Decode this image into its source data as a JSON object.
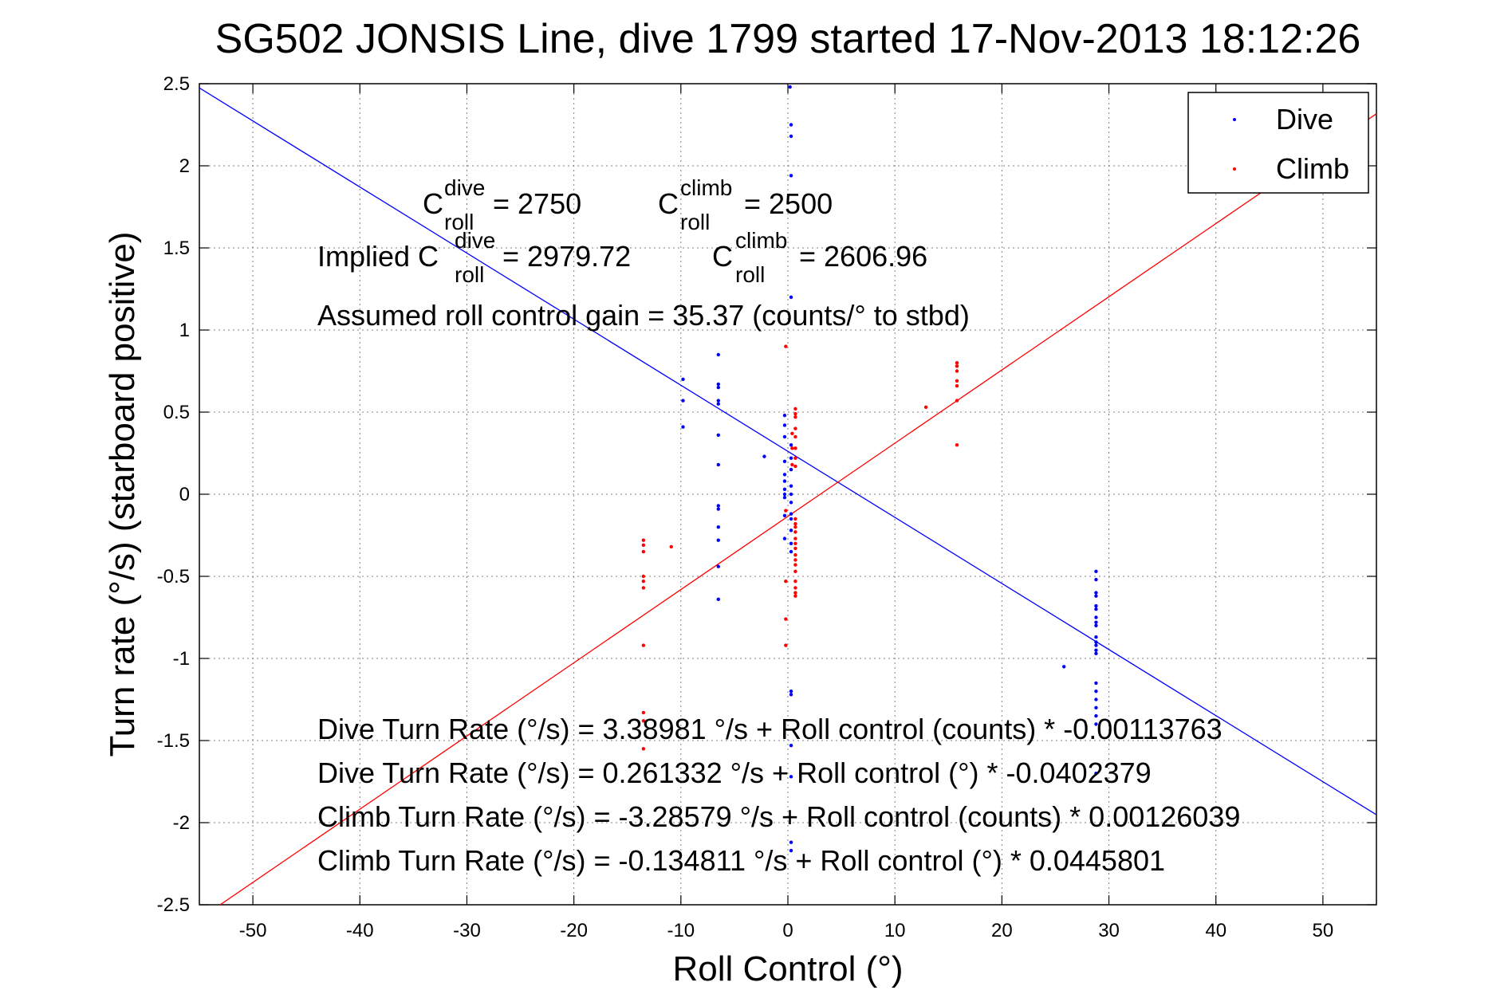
{
  "chart_data": {
    "type": "scatter",
    "title": "SG502 JONSIS Line, dive 1799 started 17-Nov-2013 18:12:26",
    "xlabel": "Roll Control (°)",
    "ylabel": "Turn rate (°/s) (starboard positive)",
    "xlim": [
      -55,
      55
    ],
    "ylim": [
      -2.5,
      2.5
    ],
    "x_ticks": [
      -50,
      -40,
      -30,
      -20,
      -10,
      0,
      10,
      20,
      30,
      40,
      50
    ],
    "x_tick_labels": [
      "-50",
      "-40",
      "-30",
      "-20",
      "-10",
      "0",
      "10",
      "20",
      "30",
      "40",
      "50"
    ],
    "y_ticks": [
      2.5,
      2,
      1.5,
      1,
      0.5,
      0,
      -0.5,
      -1,
      -1.5,
      -2,
      -2.5
    ],
    "y_tick_labels": [
      "2.5",
      "2",
      "1.5",
      "1",
      "0.5",
      "0",
      "-0.5",
      "-1",
      "-1.5",
      "-2",
      "-2.5"
    ],
    "grid": true,
    "legend_position": "top-right",
    "series": [
      {
        "name": "Dive",
        "color": "#0000ff",
        "points": [
          [
            0.2,
            2.48
          ],
          [
            0.3,
            2.25
          ],
          [
            0.3,
            2.18
          ],
          [
            0.3,
            1.94
          ],
          [
            0.3,
            1.2
          ],
          [
            -9.8,
            0.7
          ],
          [
            -9.8,
            0.57
          ],
          [
            -9.8,
            0.41
          ],
          [
            -6.5,
            0.85
          ],
          [
            -6.5,
            0.67
          ],
          [
            -6.5,
            0.65
          ],
          [
            -6.5,
            0.57
          ],
          [
            -6.5,
            0.55
          ],
          [
            -6.5,
            0.36
          ],
          [
            -6.5,
            0.18
          ],
          [
            -6.5,
            -0.07
          ],
          [
            -6.5,
            -0.09
          ],
          [
            -6.5,
            -0.2
          ],
          [
            -6.5,
            -0.28
          ],
          [
            -6.5,
            -0.44
          ],
          [
            -6.5,
            -0.64
          ],
          [
            -2.2,
            0.23
          ],
          [
            -0.3,
            0.48
          ],
          [
            -0.3,
            0.42
          ],
          [
            -0.3,
            0.35
          ],
          [
            -0.3,
            0.2
          ],
          [
            -0.3,
            0.12
          ],
          [
            -0.3,
            0.08
          ],
          [
            -0.3,
            0.03
          ],
          [
            -0.3,
            0.0
          ],
          [
            -0.3,
            -0.02
          ],
          [
            -0.3,
            -0.13
          ],
          [
            -0.3,
            -0.27
          ],
          [
            0.3,
            0.3
          ],
          [
            0.3,
            0.22
          ],
          [
            0.3,
            0.15
          ],
          [
            0.3,
            0.05
          ],
          [
            0.3,
            0.0
          ],
          [
            0.3,
            -0.05
          ],
          [
            0.3,
            -0.12
          ],
          [
            0.3,
            -0.15
          ],
          [
            0.3,
            -0.22
          ],
          [
            0.3,
            -0.3
          ],
          [
            0.3,
            -0.35
          ],
          [
            0.3,
            -1.2
          ],
          [
            0.3,
            -1.22
          ],
          [
            0.3,
            -1.53
          ],
          [
            0.3,
            -1.72
          ],
          [
            0.3,
            -2.12
          ],
          [
            0.3,
            -2.17
          ],
          [
            25.8,
            -1.05
          ],
          [
            28.8,
            -0.47
          ],
          [
            28.8,
            -0.52
          ],
          [
            28.8,
            -0.6
          ],
          [
            28.8,
            -0.62
          ],
          [
            28.8,
            -0.68
          ],
          [
            28.8,
            -0.7
          ],
          [
            28.8,
            -0.75
          ],
          [
            28.8,
            -0.78
          ],
          [
            28.8,
            -0.8
          ],
          [
            28.8,
            -0.87
          ],
          [
            28.8,
            -0.9
          ],
          [
            28.8,
            -0.92
          ],
          [
            28.8,
            -0.95
          ],
          [
            28.8,
            -0.97
          ],
          [
            28.8,
            -1.15
          ],
          [
            28.8,
            -1.2
          ],
          [
            28.8,
            -1.25
          ],
          [
            28.8,
            -1.3
          ],
          [
            28.8,
            -1.35
          ],
          [
            28.8,
            -1.4
          ],
          [
            28.8,
            -1.7
          ]
        ]
      },
      {
        "name": "Climb",
        "color": "#ff0000",
        "points": [
          [
            -13.5,
            -0.28
          ],
          [
            -13.5,
            -0.31
          ],
          [
            -13.5,
            -0.35
          ],
          [
            -13.5,
            -0.5
          ],
          [
            -13.5,
            -0.53
          ],
          [
            -13.5,
            -0.57
          ],
          [
            -13.5,
            -0.92
          ],
          [
            -13.5,
            -1.33
          ],
          [
            -13.5,
            -1.38
          ],
          [
            -13.5,
            -1.55
          ],
          [
            -10.9,
            -0.32
          ],
          [
            -0.2,
            0.9
          ],
          [
            -0.2,
            -0.1
          ],
          [
            -0.2,
            -0.53
          ],
          [
            -0.2,
            -0.76
          ],
          [
            -0.2,
            -0.92
          ],
          [
            0.4,
            0.37
          ],
          [
            0.4,
            0.28
          ],
          [
            0.4,
            0.18
          ],
          [
            0.7,
            0.52
          ],
          [
            0.7,
            0.49
          ],
          [
            0.7,
            0.47
          ],
          [
            0.7,
            0.4
          ],
          [
            0.7,
            0.35
          ],
          [
            0.7,
            0.28
          ],
          [
            0.7,
            0.22
          ],
          [
            0.7,
            0.17
          ],
          [
            0.7,
            -0.15
          ],
          [
            0.7,
            -0.18
          ],
          [
            0.7,
            -0.2
          ],
          [
            0.7,
            -0.23
          ],
          [
            0.7,
            -0.27
          ],
          [
            0.7,
            -0.3
          ],
          [
            0.7,
            -0.33
          ],
          [
            0.7,
            -0.37
          ],
          [
            0.7,
            -0.4
          ],
          [
            0.7,
            -0.43
          ],
          [
            0.7,
            -0.47
          ],
          [
            0.7,
            -0.53
          ],
          [
            0.7,
            -0.57
          ],
          [
            0.7,
            -0.6
          ],
          [
            0.7,
            -0.62
          ],
          [
            12.9,
            0.53
          ],
          [
            15.8,
            0.8
          ],
          [
            15.8,
            0.78
          ],
          [
            15.8,
            0.75
          ],
          [
            15.8,
            0.69
          ],
          [
            15.8,
            0.66
          ],
          [
            15.8,
            0.57
          ],
          [
            15.8,
            0.3
          ]
        ]
      }
    ],
    "fit_lines": [
      {
        "series": "Dive",
        "intercept": 0.261332,
        "slope": -0.0402379,
        "color": "#0000ff"
      },
      {
        "series": "Climb",
        "intercept": -0.134811,
        "slope": 0.0445801,
        "color": "#ff0000"
      }
    ],
    "annotations": {
      "c_roll_dive_label": "C",
      "c_roll_dive_sup": "dive",
      "c_roll_dive_sub": "roll",
      "c_roll_dive_value": " = 2750",
      "c_roll_climb_label": "C",
      "c_roll_climb_sup": "climb",
      "c_roll_climb_sub": "roll",
      "c_roll_climb_value": " = 2500",
      "implied_prefix": "Implied C",
      "implied_dive_sup": "dive",
      "implied_dive_sub": "roll",
      "implied_dive_value": " = 2979.72",
      "implied_climb_label": "C",
      "implied_climb_sup": "climb",
      "implied_climb_sub": "roll",
      "implied_climb_value": " = 2606.96",
      "gain": "Assumed roll control gain = 35.37 (counts/° to stbd)",
      "eq1": "Dive Turn Rate (°/s) = 3.38981 °/s + Roll control (counts) * -0.00113763",
      "eq2": "Dive Turn Rate (°/s) = 0.261332 °/s + Roll control (°) * -0.0402379",
      "eq3": "Climb Turn Rate (°/s) = -3.28579 °/s + Roll control (counts) * 0.00126039",
      "eq4": "Climb Turn Rate (°/s) = -0.134811 °/s + Roll control (°) * 0.0445801"
    }
  }
}
